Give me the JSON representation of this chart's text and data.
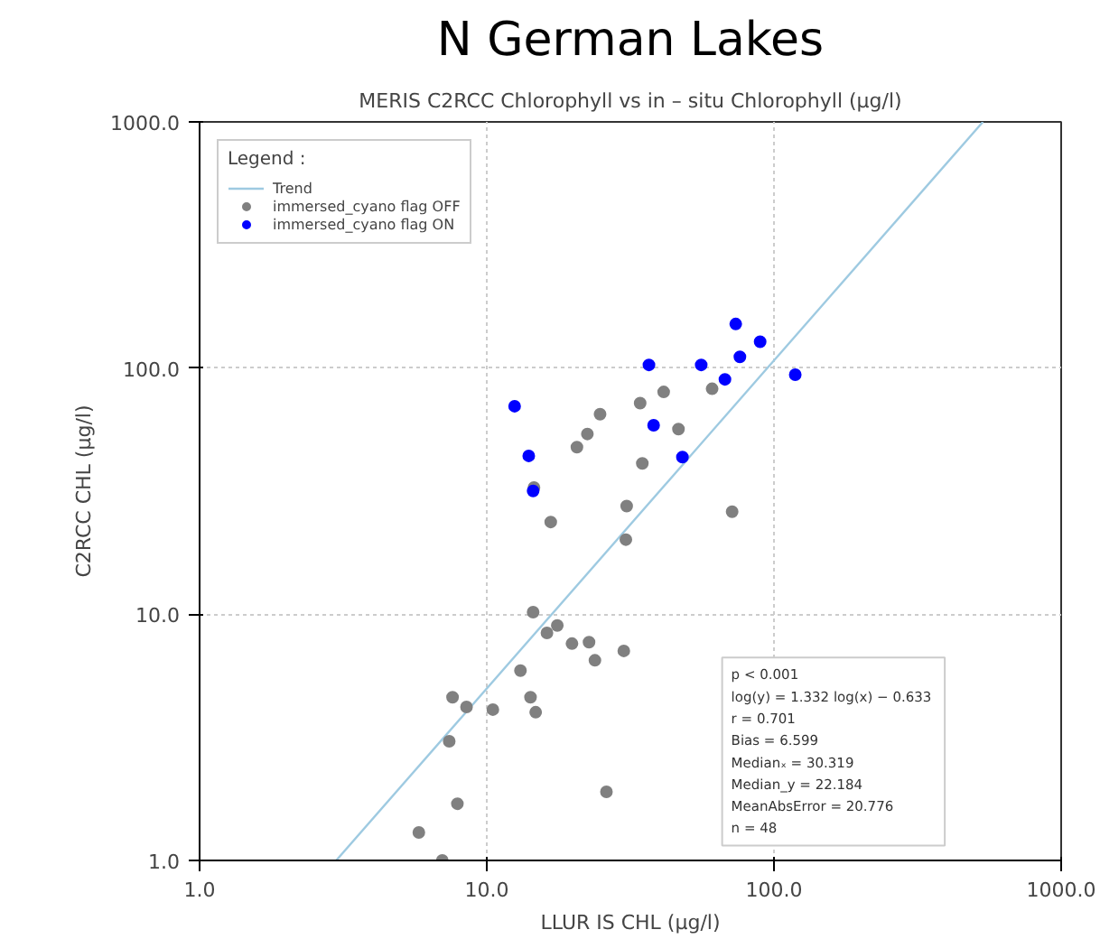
{
  "chart_data": {
    "type": "scatter",
    "title": "N German Lakes",
    "subtitle": "MERIS C2RCC Chlorophyll vs in – situ Chlorophyll (µg/l)",
    "xlabel": "LLUR IS CHL (µg/l)",
    "ylabel": "C2RCC CHL (µg/l)",
    "legend_title": "Legend :",
    "series": [
      {
        "name": "Trend",
        "type": "line",
        "marker": "none",
        "color": "#9ecae1",
        "x": [
          2.99,
          534
        ],
        "values": [
          1,
          1000
        ]
      },
      {
        "name": "immersed_cyano flag OFF",
        "marker": "circle",
        "color": "#808080",
        "x": [
          24.8,
          22.4,
          20.6,
          34.2,
          41.3,
          46.5,
          60.9,
          34.8,
          14.6,
          16.7,
          30.7,
          30.5,
          71.5,
          14.5,
          17.6,
          16.2,
          19.8,
          22.7,
          23.8,
          30.0,
          13.1,
          14.2,
          14.8,
          7.6,
          8.5,
          10.5,
          7.4,
          7.9,
          26.1,
          5.8,
          7.0
        ],
        "values": [
          65,
          54,
          47.7,
          72,
          80,
          56.5,
          82.4,
          41,
          32.7,
          23.7,
          27.5,
          20.1,
          26.1,
          10.2,
          9.0,
          8.4,
          7.6,
          7.7,
          6.5,
          7.1,
          5.9,
          4.6,
          4.0,
          4.6,
          4.2,
          4.1,
          3.05,
          1.7,
          1.9,
          1.3,
          1.0
        ]
      },
      {
        "name": "immersed_cyano flag ON",
        "marker": "circle",
        "color": "#0000ff",
        "x": [
          12.5,
          14.0,
          14.5,
          36.7,
          38.1,
          55.8,
          48.0,
          67.5,
          73.6,
          76.1,
          89.5,
          118.6
        ],
        "values": [
          70,
          44,
          31.7,
          103,
          58.6,
          103,
          43.5,
          90,
          151,
          111,
          128,
          94
        ]
      }
    ],
    "log": "xy",
    "xlim": [
      1,
      1000
    ],
    "ylim": [
      1,
      1000
    ],
    "xticks": [
      {
        "value": 1,
        "label": "1.0"
      },
      {
        "value": 10,
        "label": "10.0"
      },
      {
        "value": 100,
        "label": "100.0"
      },
      {
        "value": 1000,
        "label": "1000.0"
      }
    ],
    "yticks": [
      {
        "value": 1,
        "label": "1.0"
      },
      {
        "value": 10,
        "label": "10.0"
      },
      {
        "value": 100,
        "label": "100.0"
      },
      {
        "value": 1000,
        "label": "1000.0"
      }
    ],
    "grid": true,
    "legend": "top left",
    "annotations": [
      "p <  0.001",
      "log(y) = 1.332 log(x)  − 0.633",
      "r = 0.701",
      "Bias = 6.599",
      "Medianₓ = 30.319",
      "Median_y = 22.184",
      "MeanAbsError = 20.776",
      "n = 48"
    ]
  }
}
